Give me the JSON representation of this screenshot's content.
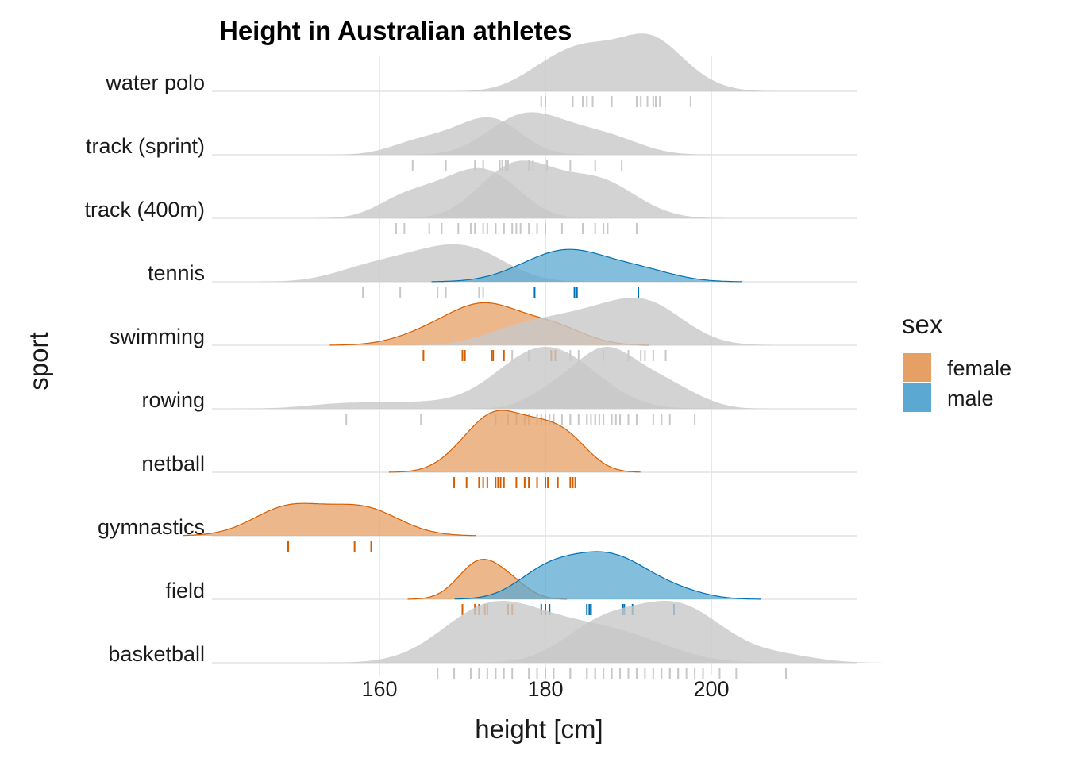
{
  "chart_data": {
    "type": "ridgeline",
    "title": "Height in Australian athletes",
    "xlabel": "height [cm]",
    "ylabel": "sport",
    "xlim": [
      140,
      217
    ],
    "xticks": [
      160,
      180,
      200
    ],
    "grid": true,
    "legend": {
      "title": "sex",
      "position": "right",
      "items": [
        {
          "label": "female",
          "color": "#e69f64"
        },
        {
          "label": "male",
          "color": "#5ba8d2"
        }
      ]
    },
    "colors": {
      "female_fill": "#e69f64",
      "female_line": "#d55e00",
      "female_rug": "#d55e00",
      "male_fill": "#5ba8d2",
      "male_line": "#0072b2",
      "male_rug": "#0072b2",
      "all_fill": "#c8c8c8",
      "all_rug": "#c8c8c8"
    },
    "categories": [
      "basketball",
      "field",
      "gymnastics",
      "netball",
      "rowing",
      "swimming",
      "tennis",
      "track (400m)",
      "track (sprint)",
      "water polo"
    ],
    "rows": [
      {
        "sport": "basketball",
        "highlight": "none",
        "female": [
          167,
          169,
          171,
          172,
          172,
          173,
          174,
          174,
          175,
          176,
          178,
          179,
          180,
          181,
          183,
          185,
          186,
          188,
          190,
          191,
          195
        ],
        "male": [
          183,
          185,
          186,
          187,
          188,
          189,
          190,
          192,
          193,
          194,
          195,
          196,
          196,
          197,
          198,
          199,
          201,
          203,
          209
        ]
      },
      {
        "sport": "field",
        "highlight": "both",
        "female": [
          170,
          171.5,
          172,
          172.7,
          173,
          175.5,
          176
        ],
        "male": [
          179.5,
          180,
          180.5,
          185,
          185.3,
          185.5,
          189.3,
          189.5,
          190.5,
          195.5
        ]
      },
      {
        "sport": "gymnastics",
        "highlight": "female",
        "female": [
          149,
          149,
          157,
          159
        ],
        "male": []
      },
      {
        "sport": "netball",
        "highlight": "female",
        "female": [
          169,
          170.5,
          172,
          172.5,
          173,
          174,
          174.3,
          174.6,
          175,
          176.5,
          177.5,
          178,
          179,
          180,
          180.3,
          181.5,
          183,
          183.3,
          183.6
        ],
        "male": []
      },
      {
        "sport": "rowing",
        "highlight": "none",
        "female": [
          156,
          165,
          174,
          175.5,
          176.5,
          177.5,
          178,
          179,
          179.5,
          180,
          180.5,
          181,
          182,
          183,
          184,
          185,
          186
        ],
        "male": [
          180,
          181,
          183,
          185,
          185.5,
          186,
          186.5,
          187,
          188,
          188.5,
          189,
          190,
          191,
          193,
          194,
          195,
          198
        ]
      },
      {
        "sport": "swimming",
        "highlight": "female",
        "female": [
          165.3,
          170,
          170.3,
          173.5,
          173.7,
          175,
          180.7,
          181.2
        ],
        "male": [
          176,
          178,
          183,
          184,
          187,
          190,
          191.5,
          192,
          193,
          194.5
        ]
      },
      {
        "sport": "tennis",
        "highlight": "male",
        "female": [
          158,
          162.5,
          167,
          168,
          172,
          172.5
        ],
        "male": [
          178.7,
          183.5,
          183.8,
          191.2
        ]
      },
      {
        "sport": "track (400m)",
        "highlight": "none",
        "female": [
          162,
          163,
          166,
          167.5,
          169.5,
          171,
          171.5,
          172.5,
          174,
          175,
          176.5
        ],
        "male": [
          173,
          174,
          175,
          176,
          177,
          178,
          179,
          180,
          182,
          184.5,
          186,
          187,
          187.5,
          191
        ]
      },
      {
        "sport": "track (sprint)",
        "highlight": "none",
        "female": [
          164,
          168,
          171.5,
          172.5,
          174.8,
          175.2
        ],
        "male": [
          174.5,
          175.5,
          178,
          178.5,
          180.2,
          183,
          186,
          189.2
        ]
      },
      {
        "sport": "water polo",
        "highlight": "none",
        "female": [],
        "male": [
          179.5,
          180,
          183.3,
          184.5,
          185,
          185.7,
          188,
          191,
          191.5,
          192.3,
          193,
          193.3,
          193.8,
          197.5
        ]
      }
    ]
  }
}
